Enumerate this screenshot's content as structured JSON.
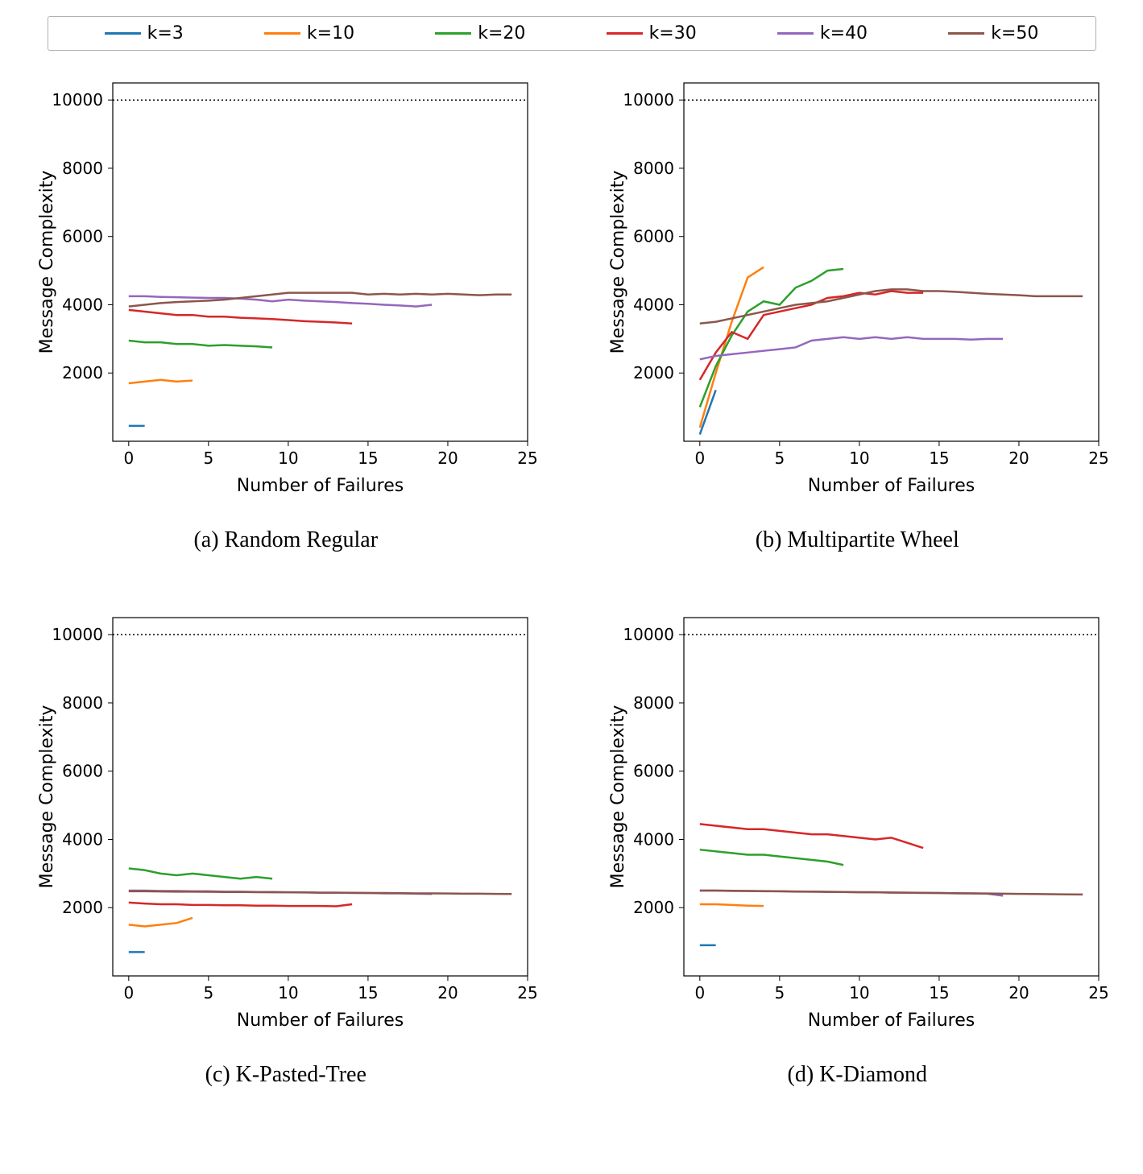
{
  "legend": {
    "items": [
      {
        "label": "k=3",
        "color": "#1f77b4"
      },
      {
        "label": "k=10",
        "color": "#ff7f0e"
      },
      {
        "label": "k=20",
        "color": "#2ca02c"
      },
      {
        "label": "k=30",
        "color": "#d62728"
      },
      {
        "label": "k=40",
        "color": "#9467bd"
      },
      {
        "label": "k=50",
        "color": "#8c564b"
      }
    ],
    "fontsize": 22
  },
  "axes": {
    "xlabel": "Number of Failures",
    "ylabel": "Message Complexity",
    "xlim": [
      -1,
      25
    ],
    "ylim": [
      0,
      10500
    ],
    "xticks": [
      0,
      5,
      10,
      15,
      20,
      25
    ],
    "yticks": [
      2000,
      4000,
      6000,
      8000,
      10000
    ],
    "ref_line_y": 10000,
    "label_fontsize": 22,
    "tick_fontsize": 20,
    "background_color": "#ffffff",
    "line_width": 2.5
  },
  "panels": [
    {
      "id": "a",
      "letter": "(a)",
      "title": "Random Regular",
      "series": [
        {
          "key": "k3",
          "color": "#1f77b4",
          "x": [
            0,
            1
          ],
          "y": [
            450,
            450
          ]
        },
        {
          "key": "k10",
          "color": "#ff7f0e",
          "x": [
            0,
            1,
            2,
            3,
            4
          ],
          "y": [
            1700,
            1750,
            1800,
            1750,
            1780
          ]
        },
        {
          "key": "k20",
          "color": "#2ca02c",
          "x": [
            0,
            1,
            2,
            3,
            4,
            5,
            6,
            7,
            8,
            9
          ],
          "y": [
            2950,
            2900,
            2900,
            2850,
            2850,
            2800,
            2820,
            2800,
            2780,
            2750
          ]
        },
        {
          "key": "k30",
          "color": "#d62728",
          "x": [
            0,
            1,
            2,
            3,
            4,
            5,
            6,
            7,
            8,
            9,
            10,
            11,
            12,
            13,
            14
          ],
          "y": [
            3850,
            3800,
            3750,
            3700,
            3700,
            3650,
            3650,
            3620,
            3600,
            3580,
            3550,
            3520,
            3500,
            3480,
            3450
          ]
        },
        {
          "key": "k40",
          "color": "#9467bd",
          "x": [
            0,
            1,
            2,
            3,
            4,
            5,
            6,
            7,
            8,
            9,
            10,
            11,
            12,
            13,
            14,
            15,
            16,
            17,
            18,
            19
          ],
          "y": [
            4250,
            4250,
            4230,
            4220,
            4210,
            4200,
            4200,
            4180,
            4150,
            4100,
            4150,
            4120,
            4100,
            4080,
            4050,
            4030,
            4000,
            3980,
            3950,
            4000
          ]
        },
        {
          "key": "k50",
          "color": "#8c564b",
          "x": [
            0,
            1,
            2,
            3,
            4,
            5,
            6,
            7,
            8,
            9,
            10,
            11,
            12,
            13,
            14,
            15,
            16,
            17,
            18,
            19,
            20,
            21,
            22,
            23,
            24
          ],
          "y": [
            3950,
            4000,
            4050,
            4080,
            4100,
            4120,
            4150,
            4200,
            4250,
            4300,
            4350,
            4350,
            4350,
            4350,
            4350,
            4300,
            4320,
            4300,
            4320,
            4300,
            4320,
            4300,
            4280,
            4300,
            4300
          ]
        }
      ]
    },
    {
      "id": "b",
      "letter": "(b)",
      "title": "Multipartite Wheel",
      "series": [
        {
          "key": "k3",
          "color": "#1f77b4",
          "x": [
            0,
            1
          ],
          "y": [
            200,
            1500
          ]
        },
        {
          "key": "k10",
          "color": "#ff7f0e",
          "x": [
            0,
            1,
            2,
            3,
            4
          ],
          "y": [
            400,
            2000,
            3500,
            4800,
            5100
          ]
        },
        {
          "key": "k20",
          "color": "#2ca02c",
          "x": [
            0,
            1,
            2,
            3,
            4,
            5,
            6,
            7,
            8,
            9
          ],
          "y": [
            1000,
            2200,
            3100,
            3800,
            4100,
            4000,
            4500,
            4700,
            5000,
            5050
          ]
        },
        {
          "key": "k30",
          "color": "#d62728",
          "x": [
            0,
            1,
            2,
            3,
            4,
            5,
            6,
            7,
            8,
            9,
            10,
            11,
            12,
            13,
            14
          ],
          "y": [
            1800,
            2600,
            3200,
            3000,
            3700,
            3800,
            3900,
            4000,
            4200,
            4250,
            4350,
            4300,
            4400,
            4350,
            4350
          ]
        },
        {
          "key": "k40",
          "color": "#9467bd",
          "x": [
            0,
            1,
            2,
            3,
            4,
            5,
            6,
            7,
            8,
            9,
            10,
            11,
            12,
            13,
            14,
            15,
            16,
            17,
            18,
            19
          ],
          "y": [
            2400,
            2500,
            2550,
            2600,
            2650,
            2700,
            2750,
            2950,
            3000,
            3050,
            3000,
            3050,
            3000,
            3050,
            3000,
            3000,
            3000,
            2980,
            3000,
            3000
          ]
        },
        {
          "key": "k50",
          "color": "#8c564b",
          "x": [
            0,
            1,
            2,
            3,
            4,
            5,
            6,
            7,
            8,
            9,
            10,
            11,
            12,
            13,
            14,
            15,
            16,
            17,
            18,
            19,
            20,
            21,
            22,
            23,
            24
          ],
          "y": [
            3450,
            3500,
            3600,
            3700,
            3800,
            3900,
            4000,
            4050,
            4100,
            4200,
            4300,
            4400,
            4450,
            4450,
            4400,
            4400,
            4380,
            4350,
            4320,
            4300,
            4280,
            4250,
            4250,
            4250,
            4250
          ]
        }
      ]
    },
    {
      "id": "c",
      "letter": "(c)",
      "title": "K-Pasted-Tree",
      "series": [
        {
          "key": "k3",
          "color": "#1f77b4",
          "x": [
            0,
            1
          ],
          "y": [
            700,
            700
          ]
        },
        {
          "key": "k10",
          "color": "#ff7f0e",
          "x": [
            0,
            1,
            2,
            3,
            4
          ],
          "y": [
            1500,
            1450,
            1500,
            1550,
            1700
          ]
        },
        {
          "key": "k20",
          "color": "#2ca02c",
          "x": [
            0,
            1,
            2,
            3,
            4,
            5,
            6,
            7,
            8,
            9
          ],
          "y": [
            3150,
            3100,
            3000,
            2950,
            3000,
            2950,
            2900,
            2850,
            2900,
            2850
          ]
        },
        {
          "key": "k30",
          "color": "#d62728",
          "x": [
            0,
            1,
            2,
            3,
            4,
            5,
            6,
            7,
            8,
            9,
            10,
            11,
            12,
            13,
            14
          ],
          "y": [
            2150,
            2120,
            2100,
            2100,
            2080,
            2080,
            2070,
            2070,
            2060,
            2060,
            2050,
            2050,
            2050,
            2040,
            2100
          ]
        },
        {
          "key": "k40",
          "color": "#9467bd",
          "x": [
            0,
            1,
            2,
            3,
            4,
            5,
            6,
            7,
            8,
            9,
            10,
            11,
            12,
            13,
            14,
            15,
            16,
            17,
            18,
            19
          ],
          "y": [
            2500,
            2500,
            2490,
            2490,
            2480,
            2480,
            2470,
            2470,
            2460,
            2460,
            2450,
            2450,
            2440,
            2440,
            2430,
            2430,
            2420,
            2420,
            2410,
            2400
          ]
        },
        {
          "key": "k50",
          "color": "#8c564b",
          "x": [
            0,
            1,
            2,
            3,
            4,
            5,
            6,
            7,
            8,
            9,
            10,
            11,
            12,
            13,
            14,
            15,
            16,
            17,
            18,
            19,
            20,
            21,
            22,
            23,
            24
          ],
          "y": [
            2480,
            2480,
            2475,
            2470,
            2470,
            2465,
            2460,
            2460,
            2455,
            2450,
            2450,
            2445,
            2440,
            2440,
            2435,
            2430,
            2430,
            2425,
            2420,
            2420,
            2415,
            2410,
            2410,
            2405,
            2400
          ]
        }
      ]
    },
    {
      "id": "d",
      "letter": "(d)",
      "title": "K-Diamond",
      "series": [
        {
          "key": "k3",
          "color": "#1f77b4",
          "x": [
            0,
            1
          ],
          "y": [
            900,
            900
          ]
        },
        {
          "key": "k10",
          "color": "#ff7f0e",
          "x": [
            0,
            1,
            2,
            3,
            4
          ],
          "y": [
            2100,
            2100,
            2080,
            2060,
            2050
          ]
        },
        {
          "key": "k20",
          "color": "#2ca02c",
          "x": [
            0,
            1,
            2,
            3,
            4,
            5,
            6,
            7,
            8,
            9
          ],
          "y": [
            3700,
            3650,
            3600,
            3550,
            3550,
            3500,
            3450,
            3400,
            3350,
            3250
          ]
        },
        {
          "key": "k30",
          "color": "#d62728",
          "x": [
            0,
            1,
            2,
            3,
            4,
            5,
            6,
            7,
            8,
            9,
            10,
            11,
            12,
            13,
            14
          ],
          "y": [
            4450,
            4400,
            4350,
            4300,
            4300,
            4250,
            4200,
            4150,
            4150,
            4100,
            4050,
            4000,
            4050,
            3900,
            3750
          ]
        },
        {
          "key": "k40",
          "color": "#9467bd",
          "x": [
            0,
            1,
            2,
            3,
            4,
            5,
            6,
            7,
            8,
            9,
            10,
            11,
            12,
            13,
            14,
            15,
            16,
            17,
            18,
            19
          ],
          "y": [
            2500,
            2500,
            2490,
            2490,
            2480,
            2480,
            2470,
            2470,
            2460,
            2460,
            2450,
            2450,
            2440,
            2440,
            2430,
            2430,
            2420,
            2420,
            2410,
            2350
          ]
        },
        {
          "key": "k50",
          "color": "#8c564b",
          "x": [
            0,
            1,
            2,
            3,
            4,
            5,
            6,
            7,
            8,
            9,
            10,
            11,
            12,
            13,
            14,
            15,
            16,
            17,
            18,
            19,
            20,
            21,
            22,
            23,
            24
          ],
          "y": [
            2500,
            2500,
            2495,
            2490,
            2485,
            2480,
            2475,
            2470,
            2465,
            2460,
            2455,
            2450,
            2445,
            2440,
            2435,
            2430,
            2425,
            2420,
            2415,
            2410,
            2405,
            2400,
            2395,
            2390,
            2385
          ]
        }
      ]
    }
  ]
}
